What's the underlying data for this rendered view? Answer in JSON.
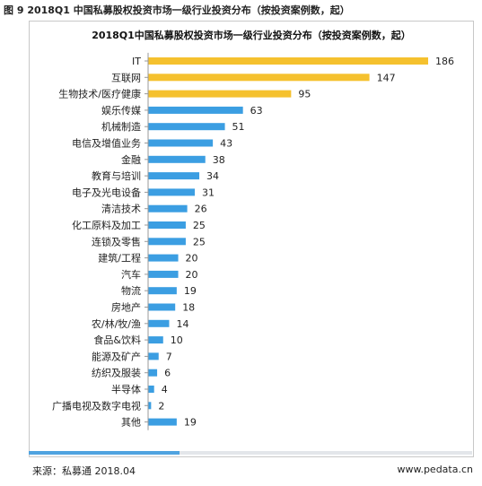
{
  "figure_caption": "图 9 2018Q1 中国私募股权投资市场一级行业投资分布（按投资案例数，起）",
  "source_text": "来源：私募通 2018.04",
  "website": "www.pedata.cn",
  "progress_fraction": 0.34,
  "colors": {
    "top3": "#f5c12e",
    "others": "#3b9ee2",
    "progress": "#4fa3e0"
  },
  "chart_data": {
    "type": "bar",
    "orientation": "horizontal",
    "title": "2018Q1中国私募股权投资市场一级行业投资分布（按投资案例数，起）",
    "categories": [
      "IT",
      "互联网",
      "生物技术/医疗健康",
      "娱乐传媒",
      "机械制造",
      "电信及增值业务",
      "金融",
      "教育与培训",
      "电子及光电设备",
      "清洁技术",
      "化工原料及加工",
      "连锁及零售",
      "建筑/工程",
      "汽车",
      "物流",
      "房地产",
      "农/林/牧/渔",
      "食品&饮料",
      "能源及矿产",
      "纺织及服装",
      "半导体",
      "广播电视及数字电视",
      "其他"
    ],
    "values": [
      186,
      147,
      95,
      63,
      51,
      43,
      38,
      34,
      31,
      26,
      25,
      25,
      20,
      20,
      19,
      18,
      14,
      10,
      7,
      6,
      4,
      2,
      19
    ],
    "highlighted_count": 3,
    "xlim": [
      0,
      186
    ],
    "grid": false,
    "legend": "none"
  }
}
